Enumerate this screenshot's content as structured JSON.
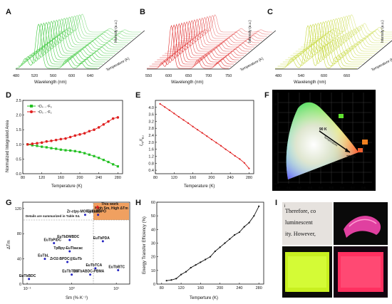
{
  "colors": {
    "panel_a": "#3cc83c",
    "panel_b": "#e03030",
    "panel_c": "#c6d83c",
    "green_series": "#22c022",
    "red_series": "#e02020",
    "orange_box": "#f0a060",
    "blue_points": "#2020c0"
  },
  "panels": {
    "A": {
      "label": "A",
      "xlabel": "Wavelength (nm)",
      "ylabel": "Intensity (a.u.)",
      "zlabel": "Temperature (K)",
      "xticks": [
        "480",
        "520",
        "560",
        "600",
        "640"
      ]
    },
    "B": {
      "label": "B",
      "xlabel": "Wavelength (nm)",
      "ylabel": "Intensity (a.u.)",
      "zlabel": "Temperature (K)",
      "xticks": [
        "550",
        "600",
        "650",
        "700",
        "750"
      ]
    },
    "C": {
      "label": "C",
      "xlabel": "Wavelength (nm)",
      "ylabel": "Intensity (a.u.)",
      "zlabel": "Temperature (K)",
      "xticks": [
        "480",
        "540",
        "600",
        "660"
      ]
    },
    "F": {
      "label": "F",
      "cie_low": "90 K",
      "cie_high": "280 K",
      "direction_text": "Temperature",
      "xticks": [
        "0.0",
        "0.1",
        "0.2",
        "0.3",
        "0.4",
        "0.5",
        "0.6",
        "0.7",
        "0.8"
      ],
      "yticks": [
        "0.0",
        "0.1",
        "0.2",
        "0.3",
        "0.4",
        "0.5",
        "0.6",
        "0.7",
        "0.8",
        "0.9"
      ]
    },
    "I": {
      "label": "I",
      "sub_i": "i",
      "sub_ii": "ii",
      "sub_iii": "iii",
      "sub_iv": "iv",
      "text_lines": [
        "Therefore, co",
        "luminescent",
        "ity. However,"
      ]
    }
  },
  "chart_data": [
    {
      "id": "D",
      "type": "line",
      "label": "D",
      "xlabel": "Temperature (K)",
      "ylabel": "Normalized Integrated Area",
      "xlim": [
        80,
        290
      ],
      "ylim": [
        0.0,
        2.5
      ],
      "xticks": [
        80,
        120,
        160,
        200,
        240,
        280
      ],
      "yticks": [
        0.0,
        0.5,
        1.0,
        1.5,
        2.0,
        2.5
      ],
      "legend_position": "top-left",
      "x": [
        90,
        100,
        110,
        120,
        130,
        140,
        150,
        160,
        170,
        180,
        190,
        200,
        210,
        220,
        230,
        240,
        250,
        260,
        270,
        280
      ],
      "series": [
        {
          "name": "5D4→7F5",
          "color": "#22c022",
          "values": [
            1.0,
            0.97,
            0.95,
            0.92,
            0.9,
            0.87,
            0.85,
            0.82,
            0.8,
            0.79,
            0.77,
            0.74,
            0.7,
            0.65,
            0.6,
            0.54,
            0.47,
            0.4,
            0.32,
            0.25
          ]
        },
        {
          "name": "5D0→7F2",
          "color": "#e02020",
          "values": [
            1.0,
            1.02,
            1.04,
            1.06,
            1.1,
            1.12,
            1.15,
            1.18,
            1.2,
            1.25,
            1.3,
            1.34,
            1.38,
            1.45,
            1.5,
            1.58,
            1.68,
            1.78,
            1.88,
            1.92
          ]
        }
      ]
    },
    {
      "id": "E",
      "type": "line",
      "label": "E",
      "xlabel": "Temperature (K)",
      "ylabel": "ITb/IEu",
      "xlim": [
        80,
        290
      ],
      "ylim": [
        0.2,
        4.4
      ],
      "xticks": [
        80,
        120,
        160,
        200,
        240,
        280
      ],
      "yticks": [
        0.4,
        0.8,
        1.2,
        1.6,
        2.0,
        2.4,
        2.8,
        3.2,
        3.6,
        4.0
      ],
      "x": [
        90,
        100,
        110,
        120,
        130,
        140,
        150,
        160,
        170,
        180,
        190,
        200,
        210,
        220,
        230,
        240,
        250,
        260,
        270,
        280
      ],
      "series": [
        {
          "name": "ITb/IEu",
          "color": "#e02020",
          "values": [
            4.2,
            4.02,
            3.84,
            3.65,
            3.46,
            3.28,
            3.1,
            2.9,
            2.72,
            2.54,
            2.35,
            2.16,
            1.98,
            1.8,
            1.6,
            1.42,
            1.22,
            1.04,
            0.82,
            0.5
          ]
        }
      ]
    },
    {
      "id": "G",
      "type": "scatter",
      "label": "G",
      "xlabel": "Sm (%·K⁻¹)",
      "ylabel": "ΔTm",
      "xscale": "log",
      "xlim": [
        0.08,
        20
      ],
      "ylim": [
        0,
        130
      ],
      "yticks": [
        0,
        40,
        80,
        120
      ],
      "xticks": [
        "10⁻¹",
        "10⁰",
        "10¹"
      ],
      "box_label": "High Sm, High ΔTm",
      "note": "Details are summarized in Table S4.",
      "points": [
        {
          "name": "Zr-ctpy-MOF@EuTb",
          "x": 2.0,
          "y": 110
        },
        {
          "name": "This work",
          "x": 3.8,
          "y": 122
        },
        {
          "name": "EuTbBDPO",
          "x": 3.9,
          "y": 110
        },
        {
          "name": "EuTbPDA",
          "x": 5.0,
          "y": 68
        },
        {
          "name": "EuTbPIDC",
          "x": 0.4,
          "y": 65
        },
        {
          "name": "EuTbDMBDC",
          "x": 0.9,
          "y": 70
        },
        {
          "name": "TpBpy-EuTbacac",
          "x": 0.9,
          "y": 52
        },
        {
          "name": "EuTbL",
          "x": 0.25,
          "y": 40
        },
        {
          "name": "ZrO2-BPDC@EuTb",
          "x": 0.8,
          "y": 35
        },
        {
          "name": "EuTbTCA",
          "x": 3.4,
          "y": 25
        },
        {
          "name": "EuTbBTC",
          "x": 11.0,
          "y": 22
        },
        {
          "name": "EuTbBDC",
          "x": 0.11,
          "y": 8
        },
        {
          "name": "EuTbTDB",
          "x": 1.0,
          "y": 15
        },
        {
          "name": "EuTbABDC-PBMA",
          "x": 2.6,
          "y": 15
        }
      ]
    },
    {
      "id": "H",
      "type": "line",
      "label": "H",
      "xlabel": "Temperture (K)",
      "ylabel": "Energy Transfer Efficiency (%)",
      "xlim": [
        70,
        290
      ],
      "ylim": [
        0,
        60
      ],
      "xticks": [
        80,
        120,
        160,
        200,
        240,
        280
      ],
      "yticks": [
        0,
        10,
        20,
        30,
        40,
        50,
        60
      ],
      "x": [
        90,
        100,
        110,
        120,
        130,
        140,
        150,
        160,
        170,
        180,
        190,
        200,
        210,
        220,
        230,
        240,
        250,
        260,
        270,
        280
      ],
      "series": [
        {
          "name": "Energy Transfer Efficiency",
          "color": "#111111",
          "values": [
            2.5,
            3,
            4,
            7,
            9,
            12,
            14,
            16,
            18,
            20,
            24,
            27,
            30,
            33,
            36,
            38,
            42,
            45,
            50,
            57
          ]
        }
      ]
    }
  ]
}
